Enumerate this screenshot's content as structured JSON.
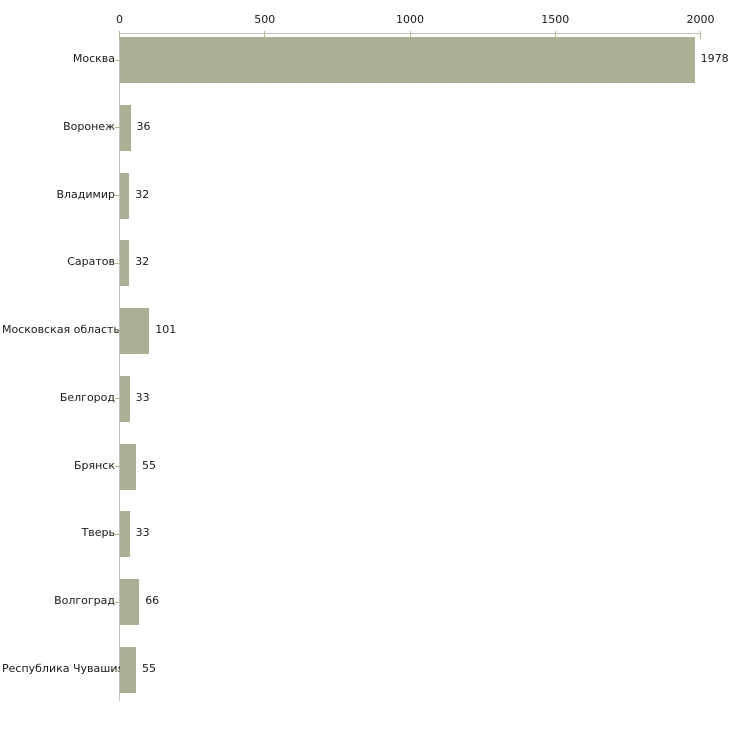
{
  "chart_data": {
    "type": "bar",
    "orientation": "horizontal",
    "title": "",
    "xlabel": "",
    "ylabel": "",
    "categories": [
      "Москва",
      "Воронеж",
      "Владимир",
      "Саратов",
      "Московская область",
      "Белгород",
      "Брянск",
      "Тверь",
      "Волгоград",
      "Республика Чувашия"
    ],
    "values": [
      1978,
      36,
      32,
      32,
      101,
      33,
      55,
      33,
      66,
      55
    ],
    "value_labels": [
      "1978",
      "36",
      "32",
      "32",
      "101",
      "33",
      "55",
      "33",
      "66",
      "55"
    ],
    "x_axis": {
      "position": "top",
      "min": 0,
      "max": 2000,
      "ticks": [
        0,
        500,
        1000,
        1500,
        2000
      ],
      "tick_labels": [
        "0",
        "500",
        "1000",
        "1500",
        "2000"
      ]
    },
    "grid": false,
    "legend": false,
    "colors": {
      "bar": "#aab094",
      "axis_line": "#c2c2c2",
      "tick_mark": "#b4b989",
      "text": "#1a1a1a",
      "background": "#ffffff"
    }
  }
}
